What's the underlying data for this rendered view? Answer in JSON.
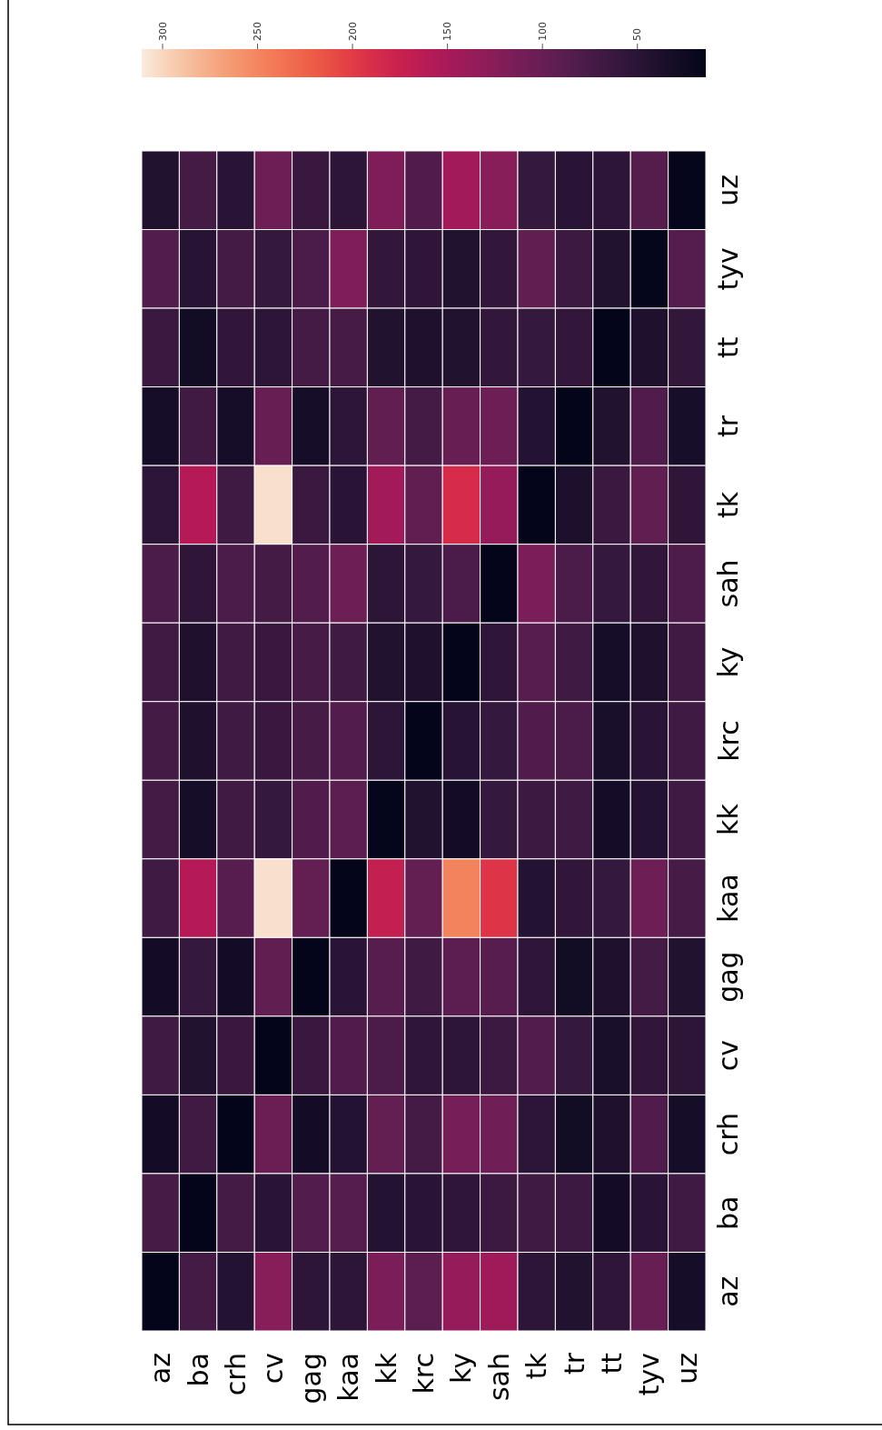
{
  "chart_data": {
    "type": "heatmap",
    "categories": [
      "az",
      "ba",
      "crh",
      "cv",
      "gag",
      "kaa",
      "kk",
      "krc",
      "ky",
      "sah",
      "tk",
      "tr",
      "tt",
      "tyv",
      "uz"
    ],
    "y_categories": [
      "uz",
      "tyv",
      "tt",
      "tr",
      "tk",
      "sah",
      "ky",
      "krc",
      "kk",
      "kaa",
      "gag",
      "cv",
      "crh",
      "ba",
      "az"
    ],
    "cells": [
      [
        42,
        72,
        50,
        105,
        62,
        52,
        118,
        82,
        145,
        125,
        60,
        50,
        52,
        85,
        16
      ],
      [
        84,
        48,
        72,
        60,
        78,
        118,
        58,
        55,
        42,
        57,
        95,
        66,
        42,
        16,
        86
      ],
      [
        64,
        28,
        56,
        52,
        72,
        74,
        42,
        40,
        42,
        57,
        60,
        57,
        15,
        40,
        57
      ],
      [
        32,
        70,
        32,
        100,
        32,
        52,
        95,
        72,
        100,
        105,
        44,
        15,
        42,
        82,
        33
      ],
      [
        52,
        160,
        68,
        305,
        64,
        50,
        145,
        95,
        188,
        135,
        15,
        38,
        64,
        95,
        55
      ],
      [
        78,
        55,
        78,
        72,
        84,
        105,
        52,
        60,
        78,
        15,
        116,
        78,
        60,
        56,
        80
      ],
      [
        70,
        40,
        70,
        62,
        74,
        68,
        42,
        40,
        15,
        55,
        87,
        68,
        32,
        40,
        70
      ],
      [
        72,
        40,
        68,
        62,
        74,
        84,
        52,
        15,
        48,
        60,
        82,
        78,
        36,
        50,
        68
      ],
      [
        72,
        32,
        70,
        60,
        82,
        92,
        16,
        42,
        30,
        60,
        66,
        68,
        31,
        44,
        68
      ],
      [
        68,
        160,
        87,
        305,
        97,
        15,
        172,
        97,
        248,
        195,
        44,
        56,
        60,
        105,
        74
      ],
      [
        30,
        60,
        30,
        95,
        15,
        50,
        87,
        68,
        92,
        87,
        55,
        28,
        40,
        72,
        42
      ],
      [
        68,
        42,
        62,
        15,
        62,
        82,
        78,
        55,
        52,
        66,
        84,
        60,
        36,
        56,
        52
      ],
      [
        30,
        70,
        15,
        103,
        30,
        44,
        97,
        72,
        112,
        107,
        52,
        28,
        40,
        82,
        32
      ],
      [
        74,
        15,
        72,
        50,
        84,
        86,
        44,
        50,
        55,
        66,
        68,
        66,
        30,
        50,
        68
      ],
      [
        15,
        72,
        44,
        125,
        52,
        52,
        116,
        92,
        135,
        142,
        52,
        42,
        55,
        100,
        32
      ]
    ],
    "clim": [
      311,
      14
    ],
    "cticks": [
      300,
      250,
      200,
      150,
      100,
      50
    ]
  }
}
